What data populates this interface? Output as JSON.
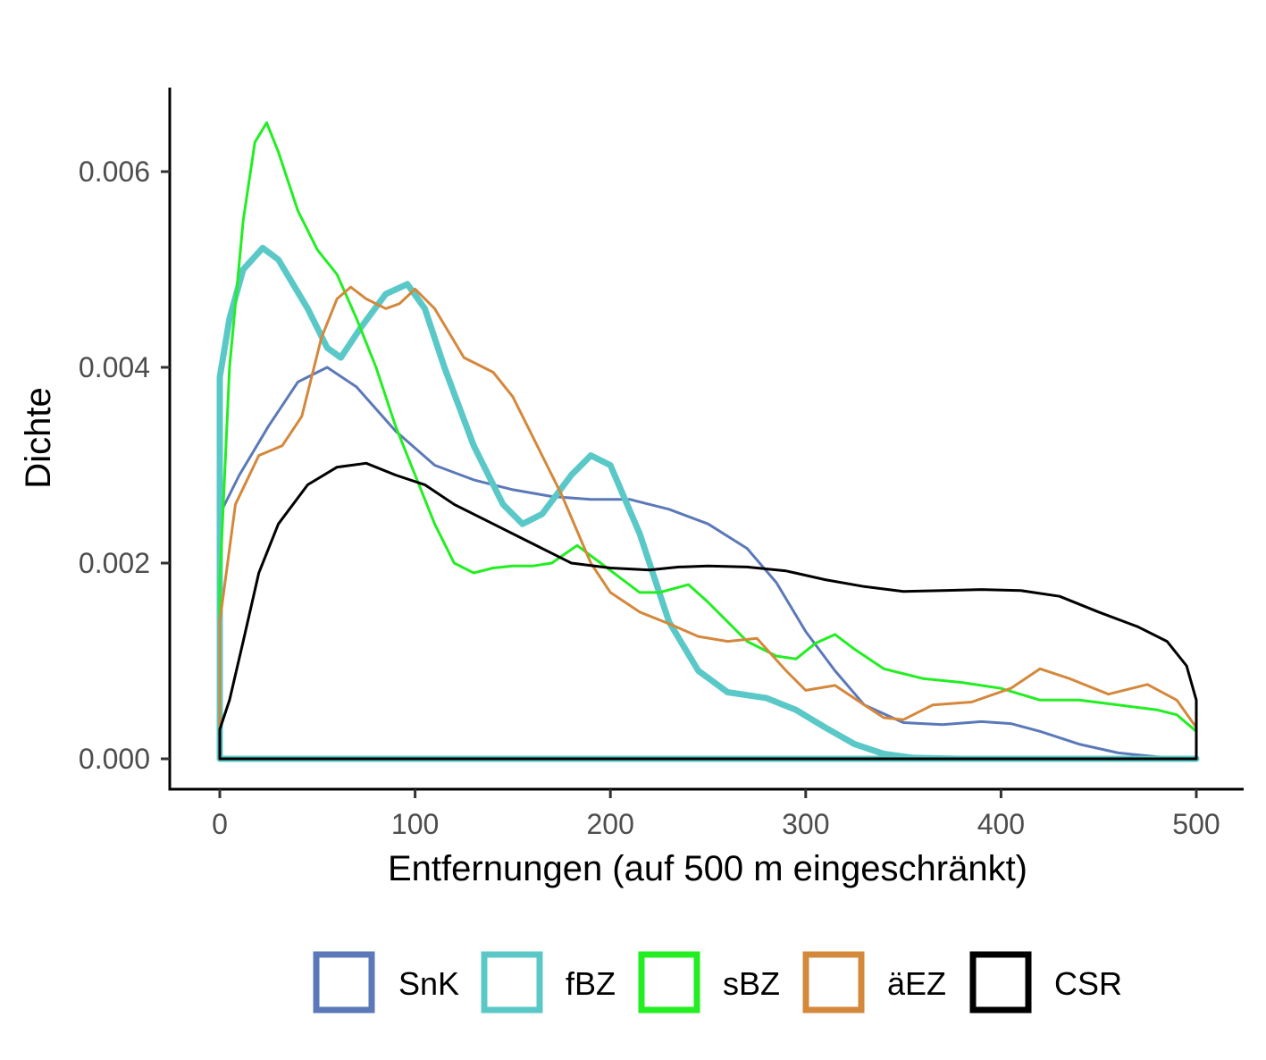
{
  "chart_data": {
    "type": "line",
    "title": "",
    "xlabel": "Entfernungen (auf 500 m eingeschränkt)",
    "ylabel": "Dichte",
    "xlim": [
      0,
      500
    ],
    "ylim": [
      0,
      0.0066
    ],
    "x_ticks": [
      0,
      100,
      200,
      300,
      400,
      500
    ],
    "x_tick_labels": [
      "0",
      "100",
      "200",
      "300",
      "400",
      "500"
    ],
    "y_ticks": [
      0,
      0.002,
      0.004,
      0.006
    ],
    "y_tick_labels": [
      "0.000",
      "0.002",
      "0.004",
      "0.006"
    ],
    "grid": false,
    "legend_position": "bottom",
    "series": [
      {
        "name": "SnK",
        "color": "#5b79b8",
        "line_width": 3,
        "x": [
          0,
          10,
          25,
          40,
          55,
          70,
          90,
          110,
          130,
          150,
          170,
          190,
          210,
          230,
          250,
          270,
          285,
          300,
          315,
          330,
          350,
          370,
          390,
          405,
          420,
          440,
          460,
          480,
          500
        ],
        "y": [
          0.0025,
          0.0029,
          0.0034,
          0.00385,
          0.004,
          0.0038,
          0.00335,
          0.003,
          0.00285,
          0.00275,
          0.00268,
          0.00265,
          0.00265,
          0.00255,
          0.0024,
          0.00215,
          0.0018,
          0.0013,
          0.0009,
          0.00055,
          0.00037,
          0.00035,
          0.00038,
          0.00036,
          0.00028,
          0.00015,
          6e-05,
          2e-05,
          0.0
        ]
      },
      {
        "name": "fBZ",
        "color": "#5bc8c8",
        "line_width": 7,
        "x": [
          0,
          5,
          12,
          22,
          30,
          45,
          55,
          62,
          72,
          85,
          96,
          105,
          115,
          130,
          145,
          155,
          165,
          180,
          190,
          200,
          215,
          230,
          245,
          260,
          280,
          295,
          310,
          325,
          340,
          355,
          380,
          420,
          460,
          500
        ],
        "y": [
          0.0039,
          0.0045,
          0.005,
          0.00522,
          0.0051,
          0.0046,
          0.0042,
          0.0041,
          0.0044,
          0.00475,
          0.00485,
          0.0046,
          0.004,
          0.0032,
          0.0026,
          0.0024,
          0.0025,
          0.0029,
          0.0031,
          0.003,
          0.0023,
          0.0014,
          0.0009,
          0.00068,
          0.00062,
          0.0005,
          0.00032,
          0.00015,
          5e-05,
          1e-05,
          0.0,
          0.0,
          0.0,
          0.0
        ]
      },
      {
        "name": "sBZ",
        "color": "#22ee22",
        "line_width": 3,
        "x": [
          0,
          5,
          12,
          18,
          24,
          30,
          40,
          50,
          60,
          70,
          80,
          90,
          100,
          110,
          120,
          130,
          140,
          150,
          160,
          170,
          183,
          195,
          205,
          215,
          225,
          240,
          250,
          260,
          270,
          285,
          295,
          305,
          315,
          325,
          340,
          360,
          380,
          400,
          420,
          440,
          460,
          480,
          490,
          500
        ],
        "y": [
          0.0018,
          0.004,
          0.0055,
          0.0063,
          0.0065,
          0.0062,
          0.0056,
          0.0052,
          0.00495,
          0.0045,
          0.004,
          0.0034,
          0.0029,
          0.0024,
          0.002,
          0.0019,
          0.00195,
          0.00197,
          0.00197,
          0.002,
          0.00218,
          0.002,
          0.00185,
          0.0017,
          0.0017,
          0.00178,
          0.0016,
          0.0014,
          0.0012,
          0.00105,
          0.00102,
          0.00118,
          0.00127,
          0.00112,
          0.00092,
          0.00082,
          0.00078,
          0.00072,
          0.0006,
          0.0006,
          0.00055,
          0.0005,
          0.00045,
          0.00028
        ]
      },
      {
        "name": "äEZ",
        "color": "#d4883c",
        "line_width": 3,
        "x": [
          0,
          8,
          20,
          32,
          42,
          52,
          60,
          67,
          75,
          85,
          92,
          100,
          110,
          125,
          140,
          150,
          160,
          175,
          190,
          200,
          215,
          230,
          245,
          260,
          275,
          290,
          300,
          315,
          330,
          340,
          350,
          365,
          385,
          405,
          420,
          435,
          455,
          475,
          490,
          500
        ],
        "y": [
          0.0014,
          0.0026,
          0.0031,
          0.0032,
          0.0035,
          0.0043,
          0.0047,
          0.00482,
          0.0047,
          0.0046,
          0.00465,
          0.0048,
          0.0046,
          0.0041,
          0.00395,
          0.0037,
          0.0033,
          0.0027,
          0.002,
          0.0017,
          0.0015,
          0.00138,
          0.00125,
          0.0012,
          0.00123,
          0.0009,
          0.0007,
          0.00075,
          0.00055,
          0.00042,
          0.0004,
          0.00055,
          0.00058,
          0.00072,
          0.00092,
          0.00082,
          0.00066,
          0.00076,
          0.0006,
          0.00032
        ]
      },
      {
        "name": "CSR",
        "color": "#000000",
        "line_width": 3,
        "x": [
          0,
          5,
          12,
          20,
          30,
          45,
          60,
          75,
          90,
          105,
          120,
          140,
          160,
          180,
          200,
          220,
          235,
          250,
          270,
          290,
          310,
          330,
          350,
          370,
          390,
          410,
          430,
          450,
          470,
          485,
          495,
          500
        ],
        "y": [
          0.0003,
          0.0006,
          0.0012,
          0.0019,
          0.0024,
          0.0028,
          0.00298,
          0.00302,
          0.0029,
          0.0028,
          0.0026,
          0.0024,
          0.0022,
          0.002,
          0.00195,
          0.00193,
          0.00196,
          0.00197,
          0.00196,
          0.00192,
          0.00183,
          0.00176,
          0.00171,
          0.00172,
          0.00173,
          0.00172,
          0.00166,
          0.0015,
          0.00135,
          0.0012,
          0.00095,
          0.0006
        ]
      }
    ]
  }
}
